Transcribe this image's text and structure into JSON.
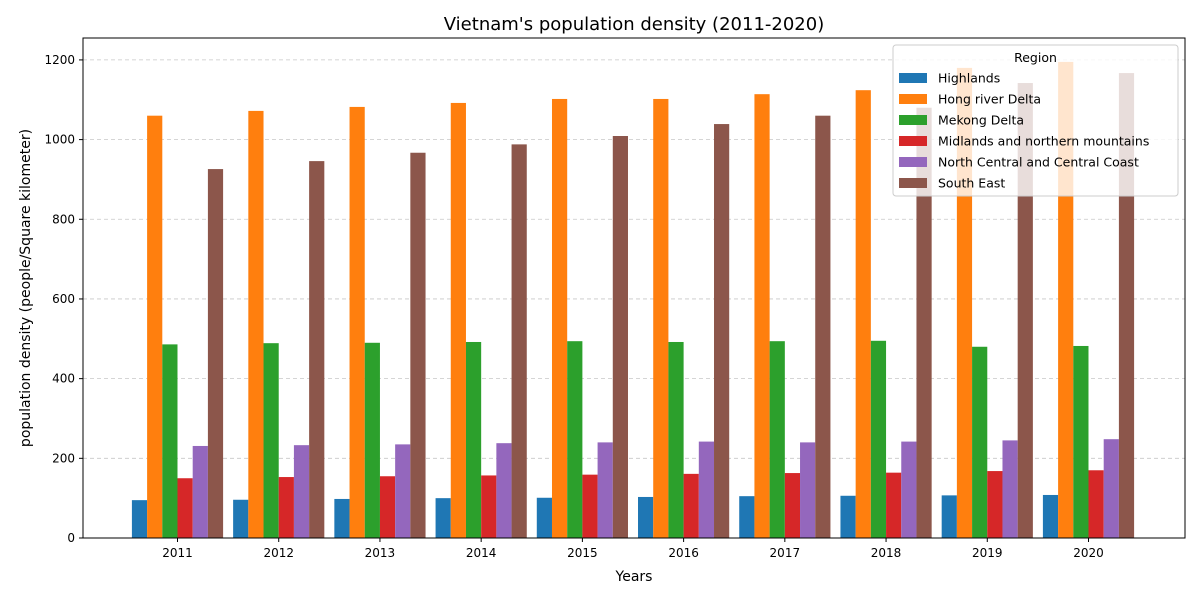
{
  "chart_data": {
    "type": "bar",
    "title": "Vietnam's population density (2011-2020)",
    "xlabel": "Years",
    "ylabel": "population density (people/Square kilometer)",
    "categories": [
      "2011",
      "2012",
      "2013",
      "2014",
      "2015",
      "2016",
      "2017",
      "2018",
      "2019",
      "2020"
    ],
    "ylim": [
      0,
      1255
    ],
    "yticks": [
      0,
      200,
      400,
      600,
      800,
      1000,
      1200
    ],
    "grid": "y-dashed",
    "legend": {
      "title": "Region",
      "position": "top-right"
    },
    "series": [
      {
        "name": "Highlands",
        "color": "#1f77b4",
        "values": [
          95,
          96,
          98,
          100,
          101,
          103,
          105,
          106,
          107,
          108
        ]
      },
      {
        "name": "Hong river Delta",
        "color": "#ff7f0e",
        "values": [
          1060,
          1072,
          1082,
          1092,
          1102,
          1102,
          1114,
          1124,
          1180,
          1195
        ]
      },
      {
        "name": "Mekong Delta",
        "color": "#2ca02c",
        "values": [
          486,
          489,
          490,
          492,
          494,
          492,
          494,
          495,
          480,
          482
        ]
      },
      {
        "name": "Midlands and northern mountains",
        "color": "#d62728",
        "values": [
          150,
          153,
          155,
          157,
          159,
          161,
          163,
          164,
          168,
          170
        ]
      },
      {
        "name": "North Central and Central Coast",
        "color": "#9467bd",
        "values": [
          231,
          233,
          235,
          238,
          240,
          242,
          240,
          242,
          245,
          248
        ]
      },
      {
        "name": "South East",
        "color": "#8c564b",
        "values": [
          926,
          946,
          967,
          988,
          1009,
          1039,
          1060,
          1080,
          1142,
          1167
        ]
      }
    ]
  }
}
